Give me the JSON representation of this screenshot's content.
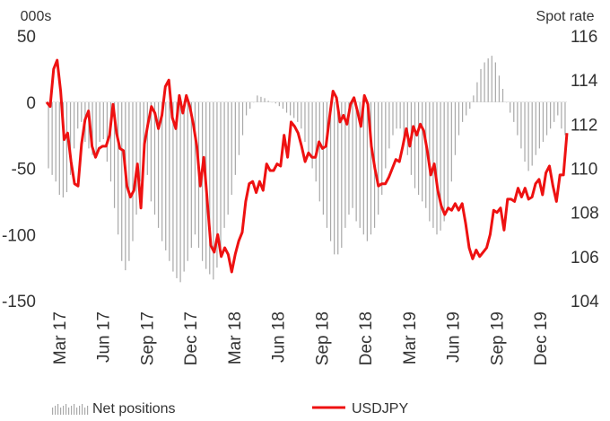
{
  "chart_data": {
    "type": "bar+line",
    "left_axis_unit": "000s",
    "right_axis_unit": "Spot rate",
    "left_ylim": [
      -150,
      50
    ],
    "left_ticks": [
      "50",
      "0",
      "-50",
      "-100",
      "-150"
    ],
    "right_ylim": [
      104,
      116
    ],
    "right_ticks": [
      "116",
      "114",
      "112",
      "110",
      "108",
      "106",
      "104"
    ],
    "x_tick_labels": [
      "Mar 17",
      "Jun 17",
      "Sep 17",
      "Dec 17",
      "Mar 18",
      "Jun 18",
      "Sep 18",
      "Dec 18",
      "Mar 19",
      "Jun 19",
      "Sep 19",
      "Dec 19"
    ],
    "grid": false,
    "legend_position": "bottom",
    "series": [
      {
        "name": "Net positions",
        "type": "bar",
        "axis": "left",
        "color": "#aaaaaa",
        "values": [
          -50,
          -55,
          -60,
          -70,
          -72,
          -68,
          -55,
          -35,
          -20,
          -15,
          -30,
          -35,
          -40,
          -38,
          -30,
          -28,
          -45,
          -60,
          -80,
          -100,
          -120,
          -127,
          -120,
          -105,
          -85,
          -60,
          -40,
          -55,
          -75,
          -85,
          -95,
          -105,
          -112,
          -120,
          -128,
          -133,
          -136,
          -128,
          -120,
          -110,
          -100,
          -110,
          -120,
          -126,
          -130,
          -134,
          -125,
          -110,
          -95,
          -85,
          -70,
          -55,
          -40,
          -25,
          -10,
          -5,
          0,
          5,
          4,
          3,
          1,
          0,
          -1,
          -3,
          -5,
          -8,
          -10,
          -12,
          -15,
          -20,
          -30,
          -40,
          -50,
          -60,
          -75,
          -85,
          -95,
          -105,
          -115,
          -115,
          -110,
          -95,
          -85,
          -80,
          -90,
          -95,
          -100,
          -105,
          -100,
          -95,
          -85,
          -70,
          -50,
          -35,
          -25,
          -20,
          -20,
          -30,
          -40,
          -55,
          -65,
          -70,
          -75,
          -80,
          -90,
          -95,
          -100,
          -97,
          -90,
          -80,
          -60,
          -40,
          -25,
          -15,
          -10,
          -5,
          5,
          15,
          25,
          30,
          33,
          35,
          30,
          20,
          10,
          0,
          -8,
          -15,
          -25,
          -35,
          -45,
          -52,
          -48,
          -40,
          -35,
          -30,
          -25,
          -20,
          -15,
          -10,
          -20,
          -25
        ]
      },
      {
        "name": "USDJPY",
        "type": "line",
        "axis": "right",
        "color": "#ee1111",
        "values": [
          113.0,
          112.8,
          114.5,
          114.9,
          113.5,
          111.3,
          111.6,
          110.3,
          109.3,
          109.2,
          111.1,
          112.2,
          112.6,
          111.0,
          110.5,
          110.9,
          111.0,
          111.0,
          111.5,
          112.9,
          111.6,
          110.9,
          110.8,
          109.2,
          108.7,
          109.0,
          110.2,
          108.2,
          111.1,
          112.0,
          112.8,
          112.5,
          111.8,
          112.4,
          113.7,
          114.0,
          112.3,
          111.8,
          113.3,
          112.5,
          113.3,
          112.8,
          112.0,
          111.0,
          109.2,
          110.5,
          108.5,
          106.5,
          106.2,
          107.0,
          106.0,
          106.4,
          106.1,
          105.3,
          106.1,
          106.7,
          107.1,
          108.5,
          109.3,
          109.4,
          108.9,
          109.4,
          109.0,
          110.2,
          109.9,
          109.9,
          110.2,
          110.1,
          111.5,
          110.5,
          112.1,
          111.9,
          111.6,
          111.0,
          110.3,
          110.7,
          110.5,
          110.5,
          111.2,
          110.9,
          111.0,
          112.3,
          113.5,
          113.2,
          112.1,
          112.4,
          112.0,
          112.9,
          113.2,
          112.6,
          111.9,
          113.3,
          112.9,
          111.0,
          110.0,
          109.2,
          109.3,
          109.3,
          109.6,
          110.0,
          110.4,
          110.3,
          111.0,
          111.8,
          111.0,
          111.9,
          111.5,
          112.0,
          111.7,
          110.8,
          109.7,
          110.2,
          109.0,
          108.3,
          107.9,
          108.2,
          108.1,
          108.4,
          108.1,
          108.4,
          107.5,
          106.4,
          105.9,
          106.3,
          106.0,
          106.2,
          106.4,
          107.0,
          108.1,
          108.0,
          108.2,
          107.2,
          108.6,
          108.6,
          108.5,
          109.1,
          108.7,
          109.1,
          108.6,
          108.7,
          109.3,
          109.5,
          108.8,
          109.8,
          110.1,
          109.2,
          108.5,
          109.7,
          109.7,
          111.6
        ]
      }
    ]
  }
}
